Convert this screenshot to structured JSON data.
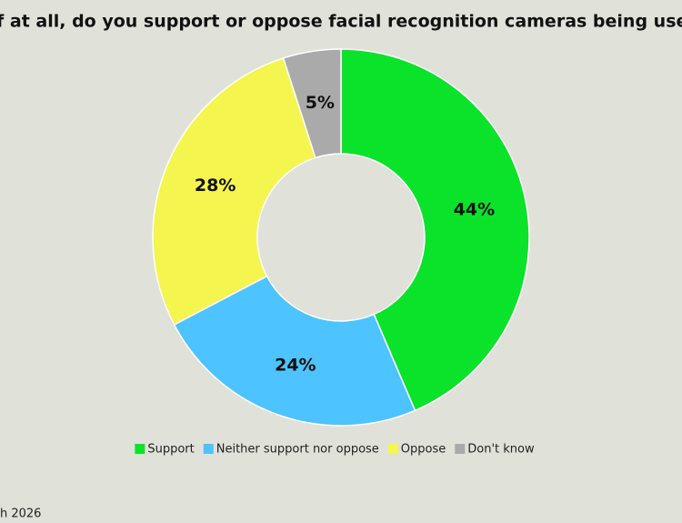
{
  "chart_data": {
    "type": "donut",
    "title": "f at all, do you support or oppose facial recognition cameras being used",
    "footnote": "h 2026",
    "categories": [
      "Support",
      "Neither support nor oppose",
      "Oppose",
      "Don't know"
    ],
    "values": [
      44,
      24,
      28,
      5
    ],
    "value_labels": [
      "44%",
      "24%",
      "28%",
      "5%"
    ],
    "colors": [
      "#0be32a",
      "#4dc3ff",
      "#f5f54f",
      "#aaaaaa"
    ],
    "legend": "bottom"
  }
}
